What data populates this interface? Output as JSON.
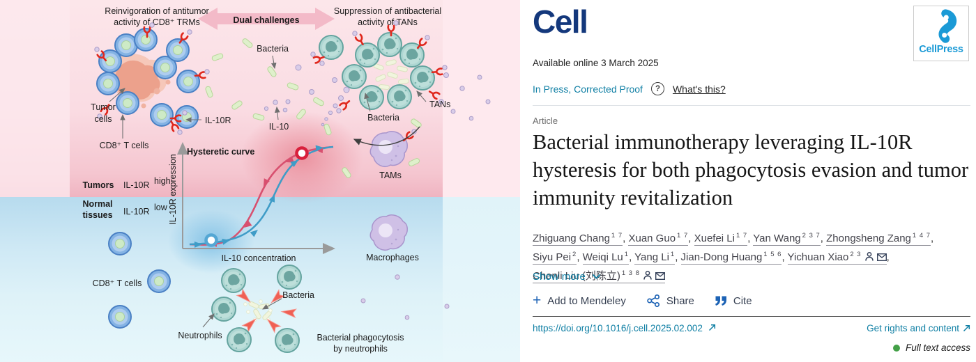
{
  "journal_header": {
    "journal_logo": "Cell",
    "publisher_logo": "CellPress",
    "available_online": "Available online 3 March 2025",
    "in_press": "In Press, Corrected Proof",
    "question_mark": "?",
    "whats_this": "What's this?"
  },
  "article": {
    "type_label": "Article",
    "title": "Bacterial immunotherapy leveraging IL-10R hysteresis for both phagocytosis evasion and tumor immunity revitalization"
  },
  "authors": [
    {
      "name": "Zhiguang Chang",
      "sup": "1 7"
    },
    {
      "name": "Xuan Guo",
      "sup": "1 7"
    },
    {
      "name": "Xuefei Li",
      "sup": "1 7"
    },
    {
      "name": "Yan Wang",
      "sup": "2 3 7"
    },
    {
      "name": "Zhongsheng Zang",
      "sup": "1 4 7"
    },
    {
      "name": "Siyu Pei",
      "sup": "2"
    },
    {
      "name": "Weiqi Lu",
      "sup": "1"
    },
    {
      "name": "Yang Li",
      "sup": "1"
    },
    {
      "name": "Jian-Dong Huang",
      "sup": "1 5 6"
    },
    {
      "name": "Yichuan Xiao",
      "sup": "2 3",
      "person": true,
      "email": true
    },
    {
      "name": "Chenli Liu (刘陈立)",
      "sup": "1 3 8",
      "person": true,
      "email": true
    }
  ],
  "author_actions": {
    "show_more": "Show more",
    "add_to_mendeley": "Add to Mendeley",
    "share": "Share",
    "cite": "Cite"
  },
  "footer_links": {
    "doi": "https://doi.org/10.1016/j.cell.2025.02.002",
    "rights": "Get rights and content",
    "access": "Full text access"
  },
  "colors": {
    "link_teal": "#0f7fa4",
    "action_blue": "#1d63b5",
    "cell_navy": "#14387c",
    "cellpress_blue": "#1b9ad6",
    "access_green": "#43a047",
    "tumors_red": "#c11f3e",
    "normal_blue": "#2b6bc0",
    "curve_pink": "#d8506f",
    "curve_blue": "#3f9cc7"
  },
  "figure": {
    "top": {
      "left_line1": "Reinvigoration of antitumor",
      "left_line2": "activity of CD8⁺ TRMs",
      "banner": "Dual challenges",
      "right_line1": "Suppression of antibacterial",
      "right_line2": "activity of TANs"
    },
    "labels": {
      "bacteria_top": "Bacteria",
      "tumor_line1": "Tumor",
      "tumor_line2": "cells",
      "cd8_top": "CD8⁺ T cells",
      "il10r": "IL-10R",
      "il10": "IL-10",
      "tans": "TANs",
      "bacteria_tan": "Bacteria",
      "tams": "TAMs",
      "macrophages": "Macrophages",
      "cd8_bottom": "CD8⁺ T cells",
      "neutrophils": "Neutrophils",
      "bacteria_bottom": "Bacteria",
      "phago_line1": "Bacterial phagocytosis",
      "phago_line2": "by neutrophils"
    },
    "plot": {
      "title": "Hysteretic curve",
      "x_axis": "IL-10 concentration",
      "y_axis": "IL-10R expression",
      "zone_high_label": "Tumors",
      "zone_high_value_base": "IL-10R",
      "zone_high_value_sup": "high",
      "zone_low_label1": "Normal",
      "zone_low_label2": "tissues",
      "zone_low_value_base": "IL-10R",
      "zone_low_value_sup": "low",
      "description": "Hysteresis: pink descending branch stays high (tumors, IL-10R high marker at high IL-10); blue ascending branch stays low (normal tissues, IL-10R low marker at low IL-10)"
    }
  }
}
